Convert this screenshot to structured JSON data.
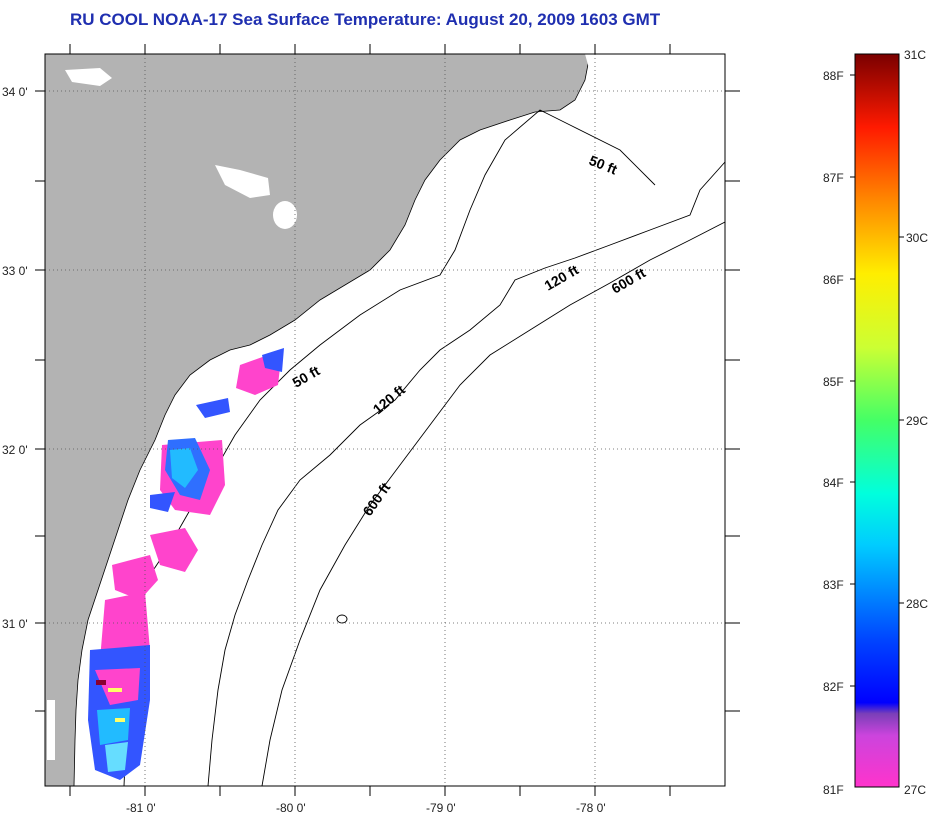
{
  "title": "RU COOL  NOAA-17  Sea Surface Temperature:  August 20, 2009 1603 GMT",
  "map": {
    "lat_labels": [
      "34 0'",
      "33 0'",
      "32 0'",
      "31 0'"
    ],
    "lon_labels": [
      "-81 0'",
      "-80 0'",
      "-79 0'",
      "-78 0'"
    ],
    "isobaths": [
      {
        "label": "50 ft"
      },
      {
        "label": "50 ft"
      },
      {
        "label": "120 ft"
      },
      {
        "label": "120 ft"
      },
      {
        "label": "600 ft"
      },
      {
        "label": "600 ft"
      }
    ],
    "colors": {
      "land": "#b3b3b3",
      "water": "#ffffff",
      "coast": "#000000"
    }
  },
  "colorbar": {
    "fahrenheit_labels": [
      "88F",
      "87F",
      "86F",
      "85F",
      "84F",
      "83F",
      "82F",
      "81F"
    ],
    "celsius_labels": [
      "31C",
      "30C",
      "29C",
      "28C",
      "27C"
    ]
  }
}
